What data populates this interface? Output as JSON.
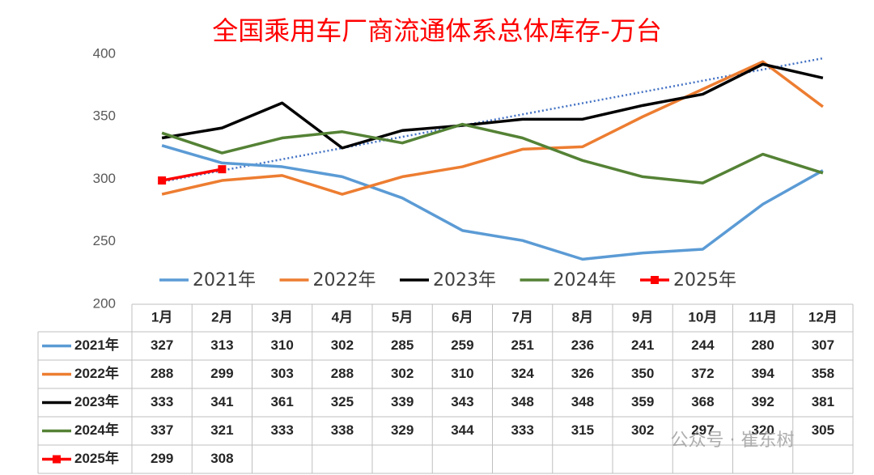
{
  "chart_data": {
    "type": "line",
    "title": "全国乘用车厂商流通体系总体库存-万台",
    "categories": [
      "1月",
      "2月",
      "3月",
      "4月",
      "5月",
      "6月",
      "7月",
      "8月",
      "9月",
      "10月",
      "11月",
      "12月"
    ],
    "series": [
      {
        "name": "2021年",
        "color": "#5b9bd5",
        "values": [
          327,
          313,
          310,
          302,
          285,
          259,
          251,
          236,
          241,
          244,
          280,
          307
        ]
      },
      {
        "name": "2022年",
        "color": "#ed7d31",
        "values": [
          288,
          299,
          303,
          288,
          302,
          310,
          324,
          326,
          350,
          372,
          394,
          358
        ]
      },
      {
        "name": "2023年",
        "color": "#000000",
        "values": [
          333,
          341,
          361,
          325,
          339,
          343,
          348,
          348,
          359,
          368,
          392,
          381
        ]
      },
      {
        "name": "2024年",
        "color": "#548235",
        "values": [
          337,
          321,
          333,
          338,
          329,
          344,
          333,
          315,
          302,
          297,
          320,
          305
        ]
      },
      {
        "name": "2025年",
        "color": "#ff0000",
        "marker": "square",
        "values": [
          299,
          308,
          null,
          null,
          null,
          null,
          null,
          null,
          null,
          null,
          null,
          null
        ]
      }
    ],
    "ylim": [
      200,
      400
    ],
    "yticks": [
      200,
      250,
      300,
      350,
      400
    ],
    "grid": false,
    "watermark": "公众号 · 崔东树"
  }
}
